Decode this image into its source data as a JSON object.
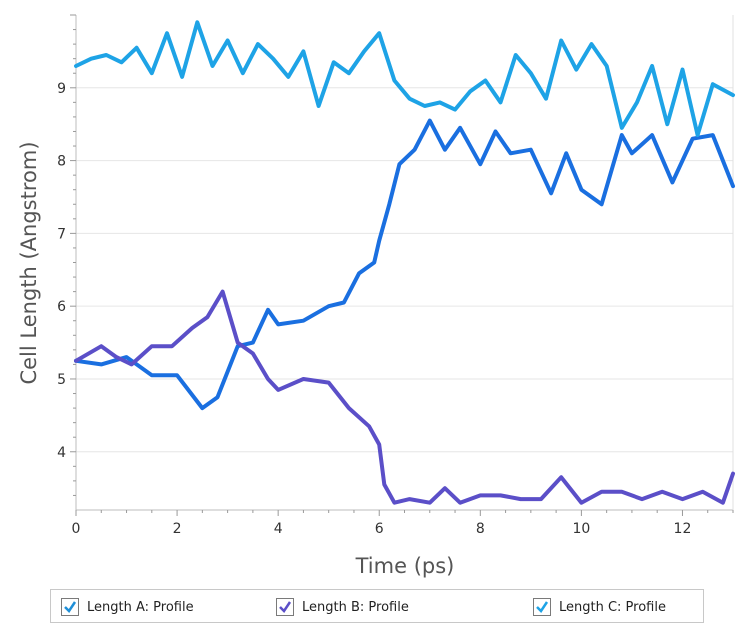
{
  "chart_data": {
    "type": "line",
    "xlabel": "Time (ps)",
    "ylabel": "Cell Length (Angstrom)",
    "xlim": [
      0,
      13
    ],
    "ylim": [
      3.2,
      10.0
    ],
    "xticks": [
      0,
      2,
      4,
      6,
      8,
      10,
      12
    ],
    "xtick_labels": [
      "0",
      "2",
      "4",
      "6",
      "8",
      "10",
      "12"
    ],
    "yticks": [
      4,
      5,
      6,
      7,
      8,
      9
    ],
    "ytick_labels": [
      "4",
      "5",
      "6",
      "7",
      "8",
      "9"
    ],
    "grid": "horizontal",
    "legend_position": "bottom",
    "series": [
      {
        "name": "Length A: Profile",
        "color": "#1a6fe0",
        "x": [
          0,
          0.5,
          1.0,
          1.5,
          2.0,
          2.5,
          2.8,
          3.2,
          3.5,
          3.8,
          4.0,
          4.5,
          5.0,
          5.3,
          5.6,
          5.9,
          6.0,
          6.2,
          6.4,
          6.7,
          7.0,
          7.3,
          7.6,
          8.0,
          8.3,
          8.6,
          9.0,
          9.4,
          9.7,
          10.0,
          10.4,
          10.8,
          11.0,
          11.4,
          11.8,
          12.2,
          12.6,
          13.0
        ],
        "values": [
          5.25,
          5.2,
          5.3,
          5.05,
          5.05,
          4.6,
          4.75,
          5.45,
          5.5,
          5.95,
          5.75,
          5.8,
          6.0,
          6.05,
          6.45,
          6.6,
          6.9,
          7.4,
          7.95,
          8.15,
          8.55,
          8.15,
          8.45,
          7.95,
          8.4,
          8.1,
          8.15,
          7.55,
          8.1,
          7.6,
          7.4,
          8.35,
          8.1,
          8.35,
          7.7,
          8.3,
          8.35,
          7.65
        ]
      },
      {
        "name": "Length B: Profile",
        "color": "#5b4fc8",
        "x": [
          0,
          0.5,
          0.8,
          1.1,
          1.5,
          1.9,
          2.3,
          2.6,
          2.9,
          3.2,
          3.5,
          3.8,
          4.0,
          4.5,
          5.0,
          5.4,
          5.8,
          6.0,
          6.1,
          6.3,
          6.6,
          7.0,
          7.3,
          7.6,
          8.0,
          8.4,
          8.8,
          9.2,
          9.6,
          10.0,
          10.4,
          10.8,
          11.2,
          11.6,
          12.0,
          12.4,
          12.8,
          13.0
        ],
        "values": [
          5.25,
          5.45,
          5.3,
          5.2,
          5.45,
          5.45,
          5.7,
          5.85,
          6.2,
          5.5,
          5.35,
          5.0,
          4.85,
          5.0,
          4.95,
          4.6,
          4.35,
          4.1,
          3.55,
          3.3,
          3.35,
          3.3,
          3.5,
          3.3,
          3.4,
          3.4,
          3.35,
          3.35,
          3.65,
          3.3,
          3.45,
          3.45,
          3.35,
          3.45,
          3.35,
          3.45,
          3.3,
          3.7
        ]
      },
      {
        "name": "Length C: Profile",
        "color": "#1ea3e6",
        "x": [
          0,
          0.3,
          0.6,
          0.9,
          1.2,
          1.5,
          1.8,
          2.1,
          2.4,
          2.7,
          3.0,
          3.3,
          3.6,
          3.9,
          4.2,
          4.5,
          4.8,
          5.1,
          5.4,
          5.7,
          6.0,
          6.3,
          6.6,
          6.9,
          7.2,
          7.5,
          7.8,
          8.1,
          8.4,
          8.7,
          9.0,
          9.3,
          9.6,
          9.9,
          10.2,
          10.5,
          10.8,
          11.1,
          11.4,
          11.7,
          12.0,
          12.3,
          12.6,
          13.0
        ],
        "values": [
          9.3,
          9.4,
          9.45,
          9.35,
          9.55,
          9.2,
          9.75,
          9.15,
          9.9,
          9.3,
          9.65,
          9.2,
          9.6,
          9.4,
          9.15,
          9.5,
          8.75,
          9.35,
          9.2,
          9.5,
          9.75,
          9.1,
          8.85,
          8.75,
          8.8,
          8.7,
          8.95,
          9.1,
          8.8,
          9.45,
          9.2,
          8.85,
          9.65,
          9.25,
          9.6,
          9.3,
          8.45,
          8.8,
          9.3,
          8.5,
          9.25,
          8.35,
          9.05,
          8.9
        ]
      }
    ]
  },
  "legend": {
    "items": [
      {
        "label": "Length A: Profile",
        "checked": true,
        "color": "#1e8fd8"
      },
      {
        "label": "Length B: Profile",
        "checked": true,
        "color": "#5b4fc8"
      },
      {
        "label": "Length C: Profile",
        "checked": true,
        "color": "#1ea3e6"
      }
    ]
  }
}
